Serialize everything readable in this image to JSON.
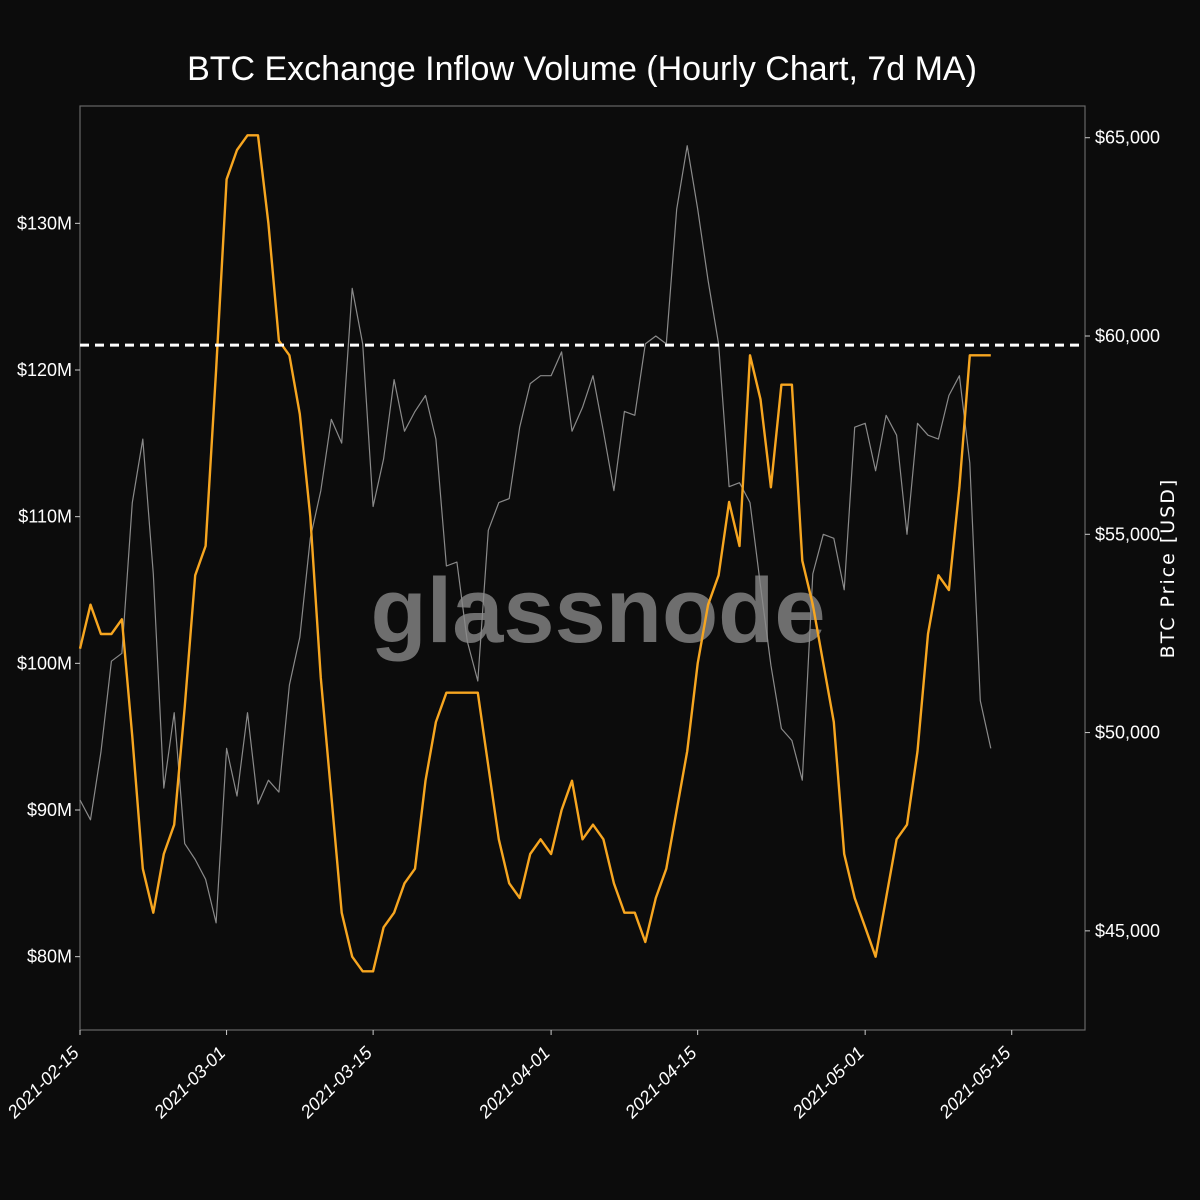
{
  "chart_data": {
    "type": "line",
    "title": "BTC Exchange Inflow Volume (Hourly Chart, 7d MA)",
    "watermark": "glassnode",
    "xlabel": "",
    "ylabel_left": "",
    "ylabel_right": "BTC Price [USD]",
    "x_ticks": [
      "2021-02-15",
      "2021-03-01",
      "2021-03-15",
      "2021-04-01",
      "2021-04-15",
      "2021-05-01",
      "2021-05-15"
    ],
    "y_left_ticks": [
      "$80M",
      "$90M",
      "$100M",
      "$110M",
      "$120M",
      "$130M"
    ],
    "y_left_tick_values": [
      80,
      90,
      100,
      110,
      120,
      130
    ],
    "y_right_ticks": [
      "$45,000",
      "$50,000",
      "$55,000",
      "$60,000",
      "$65,000"
    ],
    "y_right_tick_values": [
      45000,
      50000,
      55000,
      60000,
      65000
    ],
    "xlim": [
      "2021-02-15",
      "2021-05-22"
    ],
    "ylim_left_musd": [
      75,
      138
    ],
    "ylim_right_usd": [
      42500,
      65800
    ],
    "grid": false,
    "threshold_line": {
      "axis": "left",
      "value_musd": 121.7,
      "style": "dashed",
      "color": "#ffffff"
    },
    "series": [
      {
        "axis": "left",
        "color": "#f7a620",
        "x": [
          "2021-02-15",
          "2021-02-16",
          "2021-02-17",
          "2021-02-18",
          "2021-02-19",
          "2021-02-20",
          "2021-02-21",
          "2021-02-22",
          "2021-02-23",
          "2021-02-24",
          "2021-02-25",
          "2021-02-26",
          "2021-02-27",
          "2021-02-28",
          "2021-03-01",
          "2021-03-02",
          "2021-03-03",
          "2021-03-04",
          "2021-03-05",
          "2021-03-06",
          "2021-03-07",
          "2021-03-08",
          "2021-03-09",
          "2021-03-10",
          "2021-03-11",
          "2021-03-12",
          "2021-03-13",
          "2021-03-14",
          "2021-03-15",
          "2021-03-16",
          "2021-03-17",
          "2021-03-18",
          "2021-03-19",
          "2021-03-20",
          "2021-03-21",
          "2021-03-22",
          "2021-03-23",
          "2021-03-24",
          "2021-03-25",
          "2021-03-26",
          "2021-03-27",
          "2021-03-28",
          "2021-03-29",
          "2021-03-30",
          "2021-03-31",
          "2021-04-01",
          "2021-04-02",
          "2021-04-03",
          "2021-04-04",
          "2021-04-05",
          "2021-04-06",
          "2021-04-07",
          "2021-04-08",
          "2021-04-09",
          "2021-04-10",
          "2021-04-11",
          "2021-04-12",
          "2021-04-13",
          "2021-04-14",
          "2021-04-15",
          "2021-04-16",
          "2021-04-17",
          "2021-04-18",
          "2021-04-19",
          "2021-04-20",
          "2021-04-21",
          "2021-04-22",
          "2021-04-23",
          "2021-04-24",
          "2021-04-25",
          "2021-04-26",
          "2021-04-27",
          "2021-04-28",
          "2021-04-29",
          "2021-04-30",
          "2021-05-01",
          "2021-05-02",
          "2021-05-03",
          "2021-05-04",
          "2021-05-05",
          "2021-05-06",
          "2021-05-07",
          "2021-05-08",
          "2021-05-09",
          "2021-05-10",
          "2021-05-11",
          "2021-05-12",
          "2021-05-13"
        ],
        "values": [
          101,
          104,
          102,
          102,
          103,
          95,
          86,
          83,
          87,
          89,
          97,
          106,
          108,
          120,
          133,
          135,
          136,
          136,
          130,
          122,
          121,
          117,
          110,
          99,
          91,
          83,
          80,
          79,
          79,
          82,
          83,
          85,
          86,
          92,
          96,
          98,
          98,
          98,
          98,
          93,
          88,
          85,
          84,
          87,
          88,
          87,
          90,
          92,
          88,
          89,
          88,
          85,
          83,
          83,
          81,
          84,
          86,
          90,
          94,
          100,
          104,
          106,
          111,
          108,
          121,
          118,
          112,
          119,
          119,
          107,
          104,
          100,
          96,
          87,
          84,
          82,
          80,
          84,
          88,
          89,
          94,
          102,
          106,
          105,
          112,
          121,
          121,
          121
        ]
      },
      {
        "axis": "right",
        "color": "#8a8a8a",
        "x": [
          "2021-02-15",
          "2021-02-16",
          "2021-02-17",
          "2021-02-18",
          "2021-02-19",
          "2021-02-20",
          "2021-02-21",
          "2021-02-22",
          "2021-02-23",
          "2021-02-24",
          "2021-02-25",
          "2021-02-26",
          "2021-02-27",
          "2021-02-28",
          "2021-03-01",
          "2021-03-02",
          "2021-03-03",
          "2021-03-04",
          "2021-03-05",
          "2021-03-06",
          "2021-03-07",
          "2021-03-08",
          "2021-03-09",
          "2021-03-10",
          "2021-03-11",
          "2021-03-12",
          "2021-03-13",
          "2021-03-14",
          "2021-03-15",
          "2021-03-16",
          "2021-03-17",
          "2021-03-18",
          "2021-03-19",
          "2021-03-20",
          "2021-03-21",
          "2021-03-22",
          "2021-03-23",
          "2021-03-24",
          "2021-03-25",
          "2021-03-26",
          "2021-03-27",
          "2021-03-28",
          "2021-03-29",
          "2021-03-30",
          "2021-03-31",
          "2021-04-01",
          "2021-04-02",
          "2021-04-03",
          "2021-04-04",
          "2021-04-05",
          "2021-04-06",
          "2021-04-07",
          "2021-04-08",
          "2021-04-09",
          "2021-04-10",
          "2021-04-11",
          "2021-04-12",
          "2021-04-13",
          "2021-04-14",
          "2021-04-15",
          "2021-04-16",
          "2021-04-17",
          "2021-04-18",
          "2021-04-19",
          "2021-04-20",
          "2021-04-21",
          "2021-04-22",
          "2021-04-23",
          "2021-04-24",
          "2021-04-25",
          "2021-04-26",
          "2021-04-27",
          "2021-04-28",
          "2021-04-29",
          "2021-04-30",
          "2021-05-01",
          "2021-05-02",
          "2021-05-03",
          "2021-05-04",
          "2021-05-05",
          "2021-05-06",
          "2021-05-07",
          "2021-05-08",
          "2021-05-09",
          "2021-05-10",
          "2021-05-11",
          "2021-05-12",
          "2021-05-13"
        ],
        "values": [
          48300,
          47800,
          49500,
          51800,
          52000,
          55800,
          57400,
          54000,
          48600,
          50500,
          47200,
          46800,
          46300,
          45200,
          49600,
          48400,
          50500,
          48200,
          48800,
          48500,
          51200,
          52400,
          54900,
          56100,
          57900,
          57300,
          61200,
          59800,
          55700,
          56900,
          58900,
          57600,
          58100,
          58500,
          57400,
          54200,
          54300,
          52300,
          51300,
          55100,
          55800,
          55900,
          57700,
          58800,
          59000,
          59000,
          59600,
          57600,
          58200,
          59000,
          57600,
          56100,
          58100,
          58000,
          59800,
          60000,
          59800,
          63200,
          64800,
          63200,
          61400,
          59800,
          56200,
          56300,
          55800,
          53700,
          51700,
          50100,
          49800,
          48800,
          54000,
          55000,
          54900,
          53600,
          57700,
          57800,
          56600,
          58000,
          57500,
          55000,
          57800,
          57500,
          57400,
          58500,
          59000,
          56800,
          50800,
          49600
        ]
      }
    ]
  }
}
